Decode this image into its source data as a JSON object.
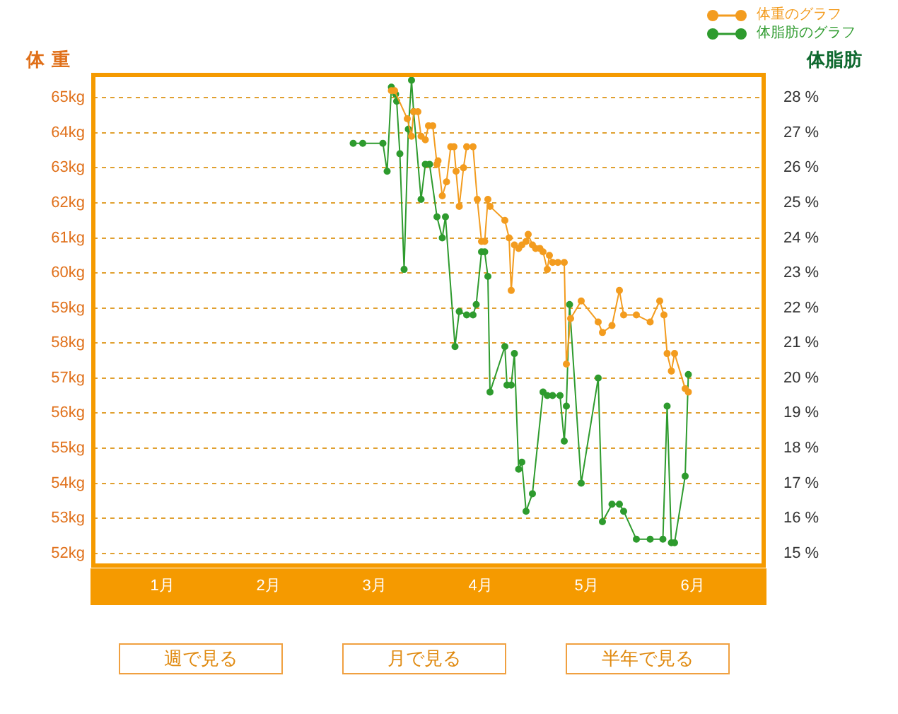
{
  "chart_data": {
    "type": "line",
    "ylabel": "体 重",
    "y2label": "体脂肪",
    "legend": "top right",
    "grid": "y",
    "marker": "circle",
    "xlim": [
      0.35,
      6.67
    ],
    "xticks": [
      {
        "value": 1,
        "label": "1月"
      },
      {
        "value": 2,
        "label": "2月"
      },
      {
        "value": 3,
        "label": "3月"
      },
      {
        "value": 4,
        "label": "4月"
      },
      {
        "value": 5,
        "label": "5月"
      },
      {
        "value": 6,
        "label": "6月"
      }
    ],
    "ylim": [
      51.65,
      65.65
    ],
    "yticks": [
      {
        "value": 52,
        "label": "52kg"
      },
      {
        "value": 53,
        "label": "53kg"
      },
      {
        "value": 54,
        "label": "54kg"
      },
      {
        "value": 55,
        "label": "55kg"
      },
      {
        "value": 56,
        "label": "56kg"
      },
      {
        "value": 57,
        "label": "57kg"
      },
      {
        "value": 58,
        "label": "58kg"
      },
      {
        "value": 59,
        "label": "59kg"
      },
      {
        "value": 60,
        "label": "60kg"
      },
      {
        "value": 61,
        "label": "61kg"
      },
      {
        "value": 62,
        "label": "62kg"
      },
      {
        "value": 63,
        "label": "63kg"
      },
      {
        "value": 64,
        "label": "64kg"
      },
      {
        "value": 65,
        "label": "65kg"
      }
    ],
    "y2lim": [
      14.65,
      28.65
    ],
    "y2ticks": [
      {
        "value": 15,
        "label": "15 %"
      },
      {
        "value": 16,
        "label": "16 %"
      },
      {
        "value": 17,
        "label": "17 %"
      },
      {
        "value": 18,
        "label": "18 %"
      },
      {
        "value": 19,
        "label": "19 %"
      },
      {
        "value": 20,
        "label": "20 %"
      },
      {
        "value": 21,
        "label": "21 %"
      },
      {
        "value": 22,
        "label": "22 %"
      },
      {
        "value": 23,
        "label": "23 %"
      },
      {
        "value": 24,
        "label": "24 %"
      },
      {
        "value": 25,
        "label": "25 %"
      },
      {
        "value": 26,
        "label": "26 %"
      },
      {
        "value": 27,
        "label": "27 %"
      },
      {
        "value": 28,
        "label": "28 %"
      }
    ],
    "series": [
      {
        "name": "体重のグラフ",
        "color": "#f39c1f",
        "x": [
          3.16,
          3.19,
          3.31,
          3.35,
          3.37,
          3.41,
          3.44,
          3.48,
          3.51,
          3.55,
          3.59,
          3.6,
          3.64,
          3.68,
          3.72,
          3.75,
          3.77,
          3.8,
          3.84,
          3.87,
          3.93,
          3.97,
          4.01,
          4.04,
          4.07,
          4.09,
          4.23,
          4.27,
          4.29,
          4.32,
          4.36,
          4.39,
          4.43,
          4.45,
          4.49,
          4.52,
          4.56,
          4.59,
          4.63,
          4.65,
          4.68,
          4.73,
          4.79,
          4.81,
          4.85,
          4.95,
          5.11,
          5.15,
          5.24,
          5.31,
          5.35,
          5.47,
          5.6,
          5.69,
          5.73,
          5.76,
          5.8,
          5.83,
          5.93,
          5.96
        ],
        "values": [
          65.2,
          65.2,
          64.4,
          63.9,
          64.6,
          64.6,
          63.9,
          63.8,
          64.2,
          64.2,
          63.1,
          63.2,
          62.2,
          62.6,
          63.6,
          63.6,
          62.9,
          61.9,
          63.0,
          63.6,
          63.6,
          62.1,
          60.9,
          60.9,
          62.1,
          61.9,
          61.5,
          61.0,
          59.5,
          60.8,
          60.7,
          60.8,
          60.9,
          61.1,
          60.8,
          60.7,
          60.7,
          60.6,
          60.1,
          60.5,
          60.3,
          60.3,
          60.3,
          57.4,
          58.7,
          59.2,
          58.6,
          58.3,
          58.5,
          59.5,
          58.8,
          58.8,
          58.6,
          59.2,
          58.8,
          57.7,
          57.2,
          57.7,
          56.7,
          56.6
        ]
      },
      {
        "name": "体脂肪のグラフ",
        "color": "#2e9b2e",
        "axis": "y2",
        "x": [
          2.8,
          2.89,
          3.08,
          3.12,
          3.16,
          3.2,
          3.21,
          3.24,
          3.28,
          3.32,
          3.35,
          3.37,
          3.44,
          3.48,
          3.52,
          3.59,
          3.64,
          3.67,
          3.76,
          3.8,
          3.87,
          3.93,
          3.96,
          4.01,
          4.04,
          4.07,
          4.09,
          4.23,
          4.25,
          4.29,
          4.32,
          4.36,
          4.39,
          4.43,
          4.49,
          4.59,
          4.63,
          4.68,
          4.75,
          4.79,
          4.81,
          4.84,
          4.95,
          5.11,
          5.15,
          5.24,
          5.31,
          5.35,
          5.47,
          5.6,
          5.72,
          5.76,
          5.8,
          5.83,
          5.93,
          5.96
        ],
        "values": [
          26.7,
          26.7,
          26.7,
          25.9,
          28.3,
          28.1,
          27.9,
          26.4,
          23.1,
          27.1,
          28.5,
          27.6,
          25.1,
          26.1,
          26.1,
          24.6,
          24.0,
          24.6,
          20.9,
          21.9,
          21.8,
          21.8,
          22.1,
          23.6,
          23.6,
          22.9,
          19.6,
          20.9,
          19.8,
          19.8,
          20.7,
          17.4,
          17.6,
          16.2,
          16.7,
          19.6,
          19.5,
          19.5,
          19.5,
          18.2,
          19.2,
          22.1,
          17.0,
          20.0,
          15.9,
          16.4,
          16.4,
          16.2,
          15.4,
          15.4,
          15.4,
          19.2,
          15.3,
          15.3,
          17.2,
          20.1
        ]
      }
    ],
    "annotations": [
      "週で見る",
      "月で見る",
      "半年で見る"
    ]
  }
}
